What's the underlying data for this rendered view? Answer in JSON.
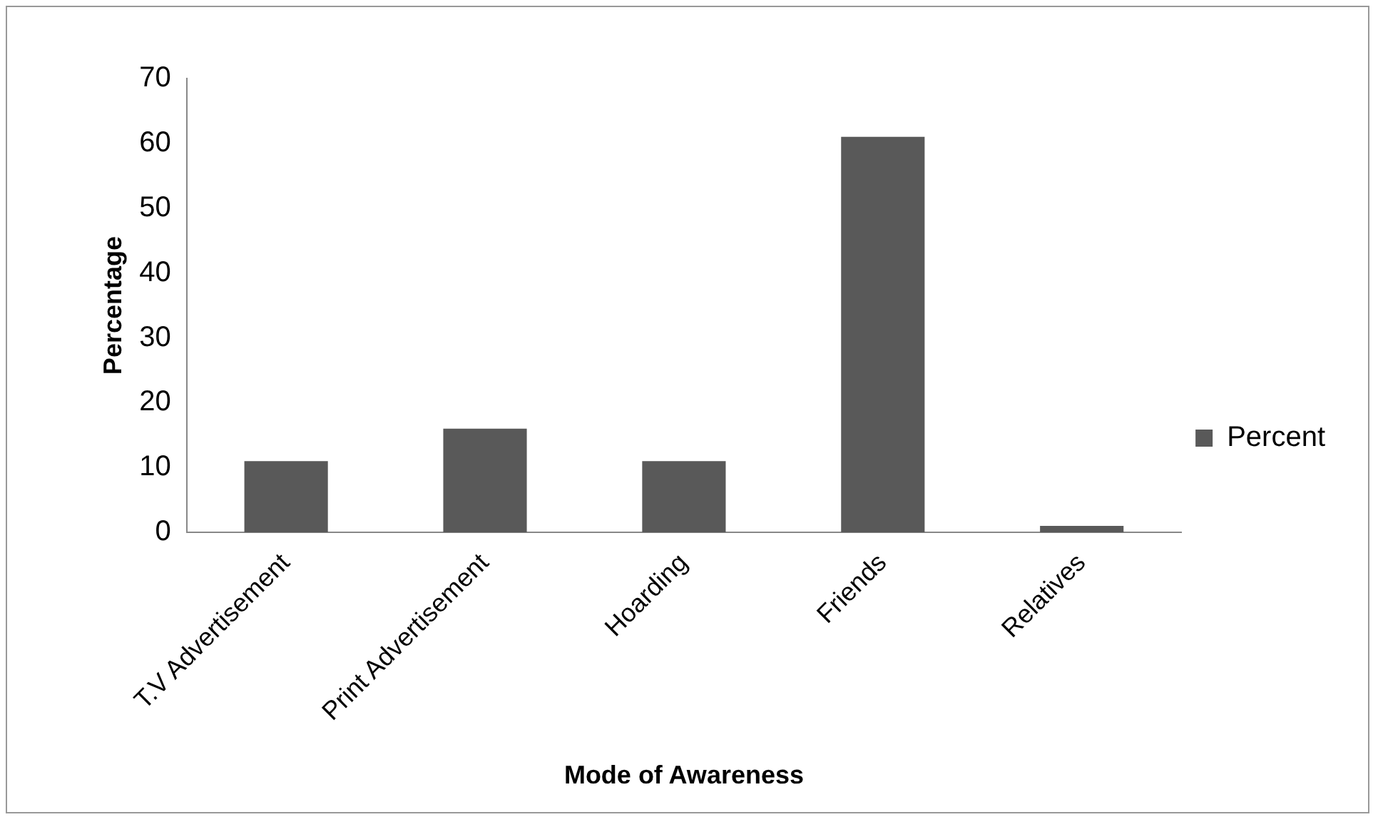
{
  "chart_data": {
    "type": "bar",
    "xlabel": "Mode of Awareness",
    "ylabel": "Percentage",
    "categories": [
      "T.V Advertisement",
      "Print Advertisement",
      "Hoarding",
      "Friends",
      "Relatives"
    ],
    "series": [
      {
        "name": "Percent",
        "color": "#595959",
        "values": [
          11,
          16,
          11,
          61,
          1
        ]
      }
    ],
    "ylim": [
      0,
      70
    ],
    "yticks": [
      0,
      10,
      20,
      30,
      40,
      50,
      60,
      70
    ],
    "grid": false,
    "legend": "right"
  }
}
